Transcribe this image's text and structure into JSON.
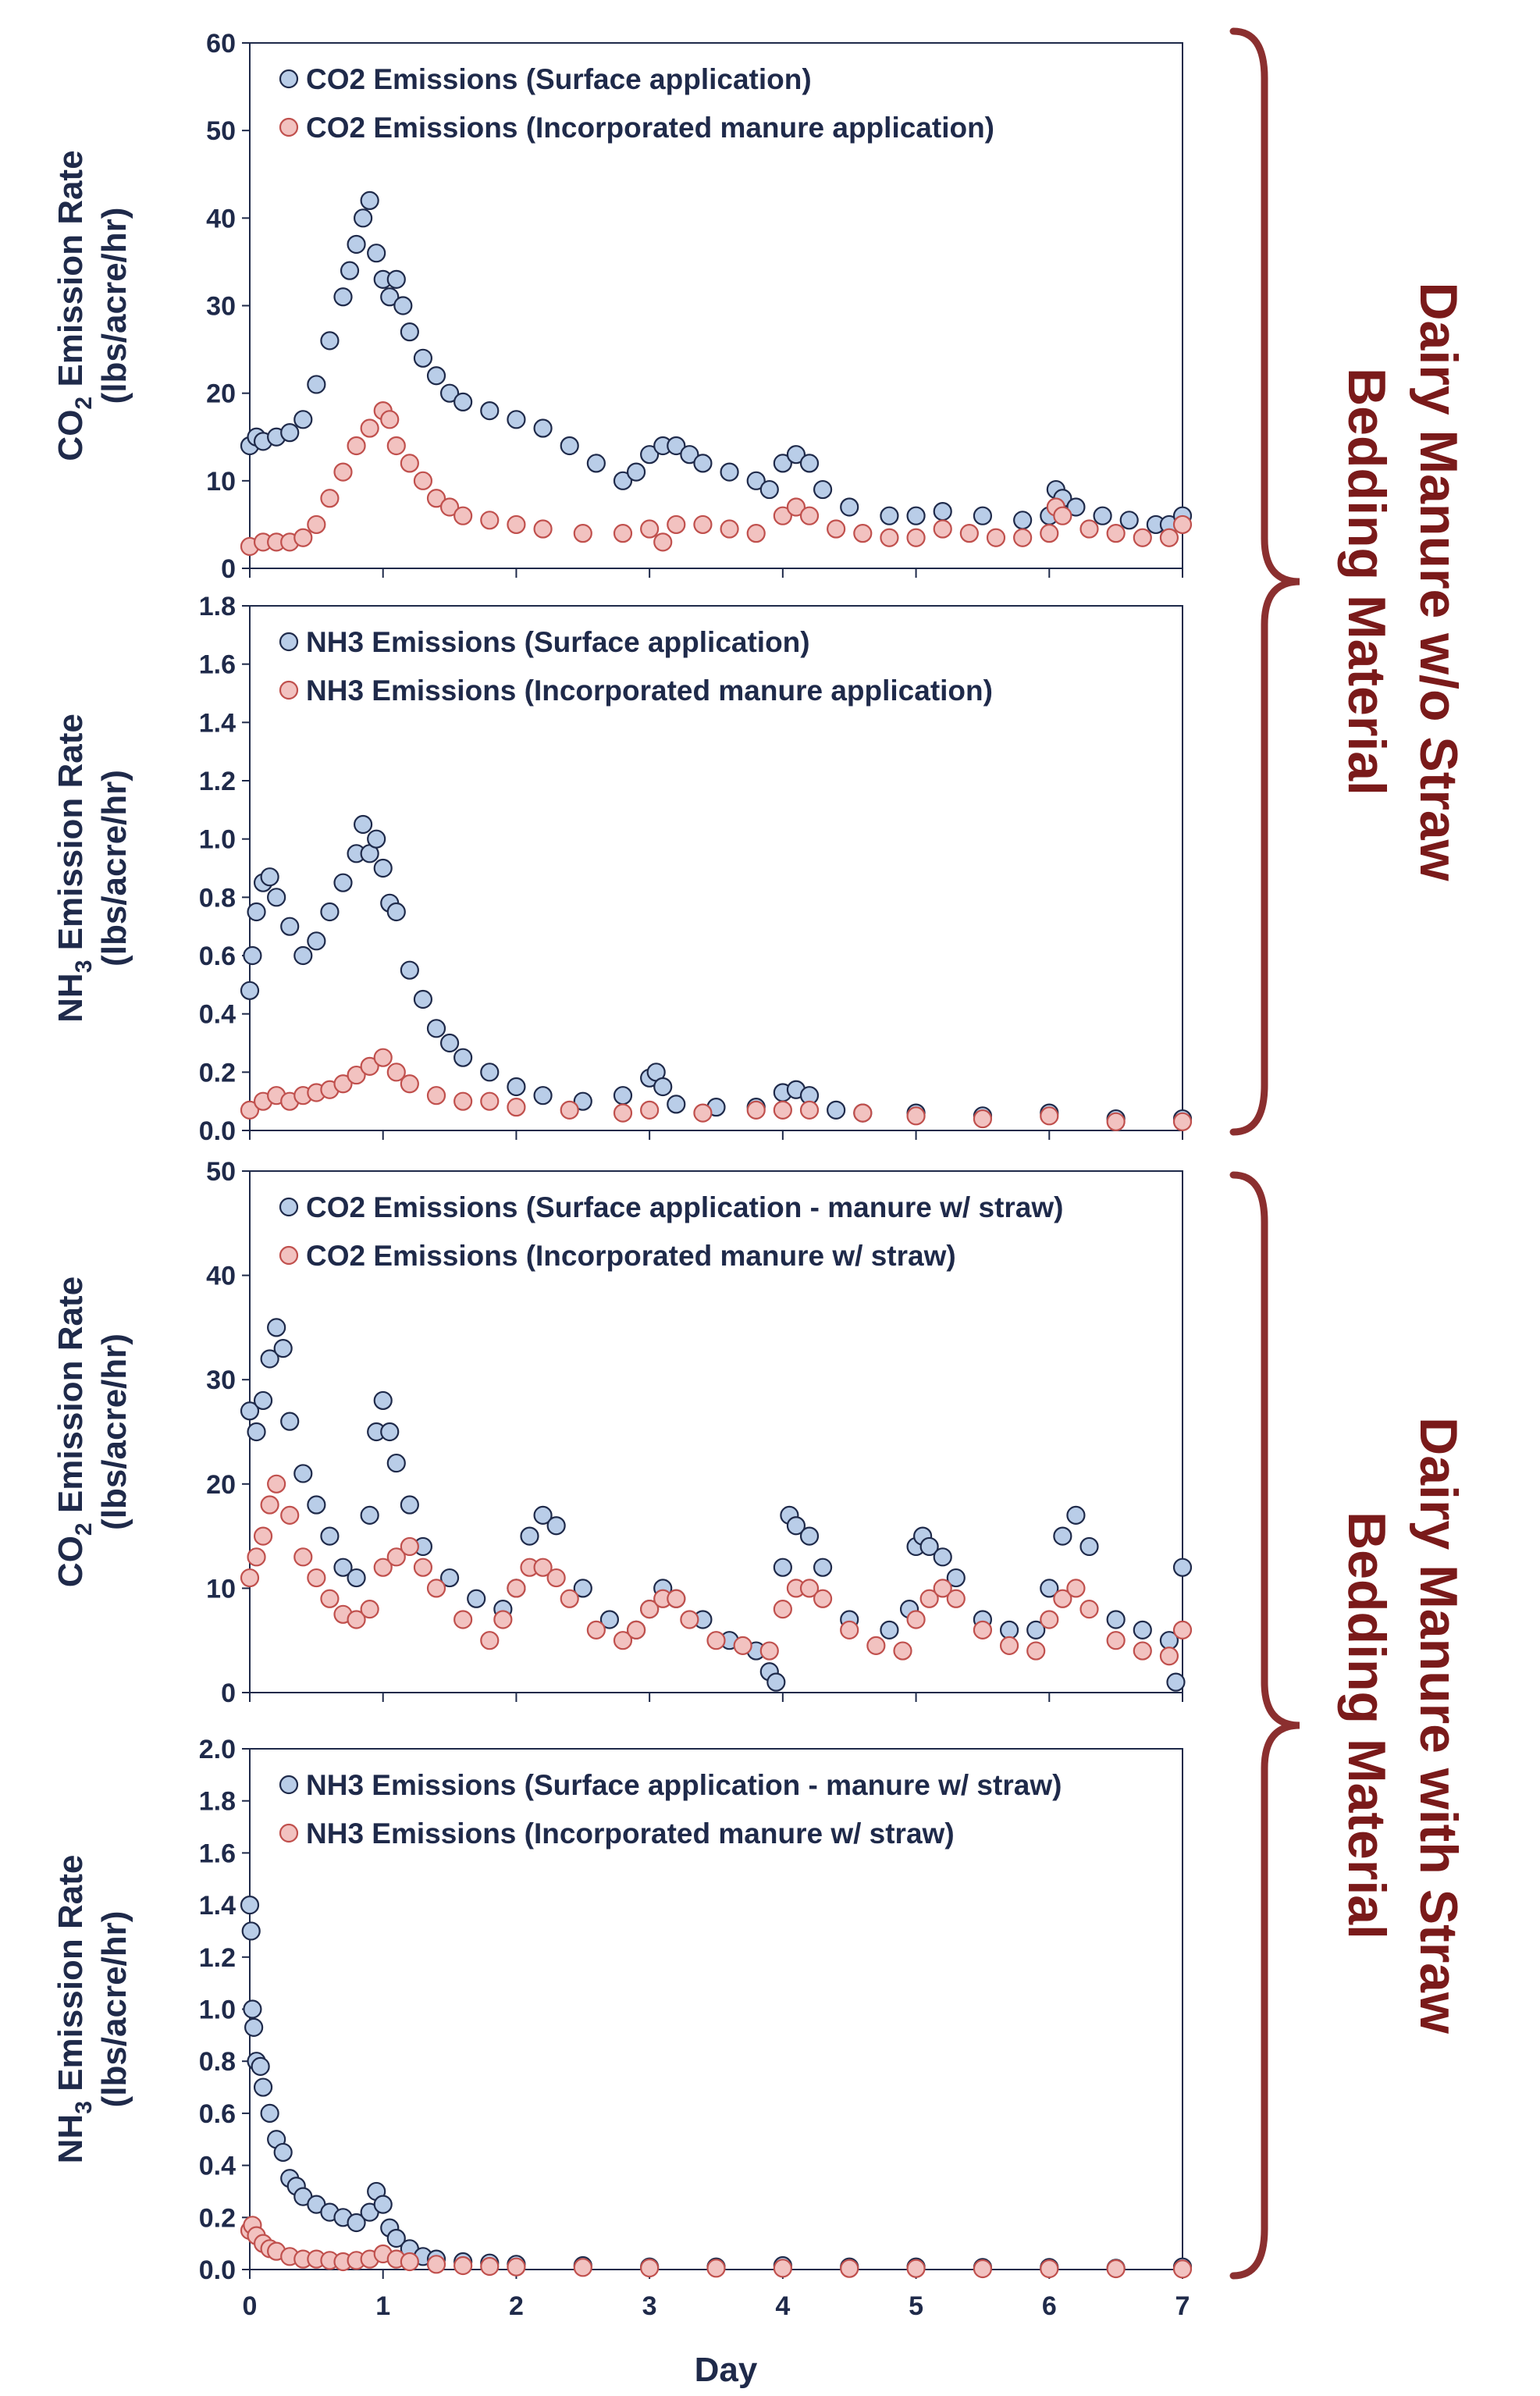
{
  "x_axis": {
    "label": "Day",
    "ticks": [
      "0",
      "1",
      "2",
      "3",
      "4",
      "5",
      "6",
      "7"
    ],
    "range": [
      0,
      7
    ]
  },
  "groups": [
    {
      "label": [
        "Dairy Manure w/o Straw",
        "Bedding Material"
      ],
      "bracket_color": "#8b2f2f"
    },
    {
      "label": [
        "Dairy Manure with Straw",
        "Bedding Material"
      ],
      "bracket_color": "#8b2f2f"
    }
  ],
  "colors": {
    "surface_fill": "#b9cde8",
    "surface_edge": "#1f2a4a",
    "incorporated_fill": "#f2c2c0",
    "incorporated_edge": "#c0504d",
    "text": "#1f2a4a",
    "group_text": "#7a1a1a"
  },
  "chart_data": [
    {
      "type": "scatter",
      "ylabel": [
        "CO",
        "2",
        " Emission Rate",
        "(lbs/acre/hr)"
      ],
      "ylim": [
        0,
        60
      ],
      "yticks": [
        0,
        10,
        20,
        30,
        40,
        50,
        60
      ],
      "yticks_text": [
        "0",
        "10",
        "20",
        "30",
        "40",
        "50",
        "60"
      ],
      "series": [
        {
          "name": "CO2 Emissions (Surface application)",
          "style": "surface",
          "x": [
            0,
            0.05,
            0.1,
            0.2,
            0.3,
            0.4,
            0.5,
            0.6,
            0.7,
            0.75,
            0.8,
            0.85,
            0.9,
            0.95,
            1.0,
            1.05,
            1.1,
            1.15,
            1.2,
            1.3,
            1.4,
            1.5,
            1.6,
            1.8,
            2.0,
            2.2,
            2.4,
            2.6,
            2.8,
            2.9,
            3.0,
            3.1,
            3.2,
            3.3,
            3.4,
            3.6,
            3.8,
            3.9,
            4.0,
            4.1,
            4.2,
            4.3,
            4.5,
            4.8,
            5.0,
            5.2,
            5.5,
            5.8,
            6.0,
            6.05,
            6.1,
            6.2,
            6.4,
            6.6,
            6.8,
            6.9,
            7.0
          ],
          "y": [
            14,
            15,
            14.5,
            15,
            15.5,
            17,
            21,
            26,
            31,
            34,
            37,
            40,
            42,
            36,
            33,
            31,
            33,
            30,
            27,
            24,
            22,
            20,
            19,
            18,
            17,
            16,
            14,
            12,
            10,
            11,
            13,
            14,
            14,
            13,
            12,
            11,
            10,
            9,
            12,
            13,
            12,
            9,
            7,
            6,
            6,
            6.5,
            6,
            5.5,
            6,
            9,
            8,
            7,
            6,
            5.5,
            5,
            5,
            6
          ]
        },
        {
          "name": "CO2 Emissions (Incorporated manure application)",
          "style": "incorporated",
          "x": [
            0,
            0.1,
            0.2,
            0.3,
            0.4,
            0.5,
            0.6,
            0.7,
            0.8,
            0.9,
            1.0,
            1.05,
            1.1,
            1.2,
            1.3,
            1.4,
            1.5,
            1.6,
            1.8,
            2.0,
            2.2,
            2.5,
            2.8,
            3.0,
            3.1,
            3.2,
            3.4,
            3.6,
            3.8,
            4.0,
            4.1,
            4.2,
            4.4,
            4.6,
            4.8,
            5.0,
            5.2,
            5.4,
            5.6,
            5.8,
            6.0,
            6.05,
            6.1,
            6.3,
            6.5,
            6.7,
            6.9,
            7.0
          ],
          "y": [
            2.5,
            3,
            3,
            3,
            3.5,
            5,
            8,
            11,
            14,
            16,
            18,
            17,
            14,
            12,
            10,
            8,
            7,
            6,
            5.5,
            5,
            4.5,
            4,
            4,
            4.5,
            3,
            5,
            5,
            4.5,
            4,
            6,
            7,
            6,
            4.5,
            4,
            3.5,
            3.5,
            4.5,
            4,
            3.5,
            3.5,
            4,
            7,
            6,
            4.5,
            4,
            3.5,
            3.5,
            5
          ]
        }
      ]
    },
    {
      "type": "scatter",
      "ylabel": [
        "NH",
        "3",
        " Emission Rate",
        "(lbs/acre/hr)"
      ],
      "ylim": [
        0,
        1.8
      ],
      "yticks": [
        0,
        0.2,
        0.4,
        0.6,
        0.8,
        1.0,
        1.2,
        1.4,
        1.6,
        1.8
      ],
      "yticks_text": [
        "0.0",
        "0.2",
        "0.4",
        "0.6",
        "0.8",
        "1.0",
        "1.2",
        "1.4",
        "1.6",
        "1.8"
      ],
      "series": [
        {
          "name": "NH3 Emissions (Surface application)",
          "style": "surface",
          "x": [
            0,
            0.02,
            0.05,
            0.1,
            0.15,
            0.2,
            0.3,
            0.4,
            0.5,
            0.6,
            0.7,
            0.8,
            0.85,
            0.9,
            0.95,
            1.0,
            1.05,
            1.1,
            1.2,
            1.3,
            1.4,
            1.5,
            1.6,
            1.8,
            2.0,
            2.2,
            2.5,
            2.8,
            3.0,
            3.05,
            3.1,
            3.2,
            3.5,
            3.8,
            4.0,
            4.1,
            4.2,
            4.4,
            4.6,
            5.0,
            5.5,
            6.0,
            6.5,
            7.0
          ],
          "y": [
            0.48,
            0.6,
            0.75,
            0.85,
            0.87,
            0.8,
            0.7,
            0.6,
            0.65,
            0.75,
            0.85,
            0.95,
            1.05,
            0.95,
            1.0,
            0.9,
            0.78,
            0.75,
            0.55,
            0.45,
            0.35,
            0.3,
            0.25,
            0.2,
            0.15,
            0.12,
            0.1,
            0.12,
            0.18,
            0.2,
            0.15,
            0.09,
            0.08,
            0.08,
            0.13,
            0.14,
            0.12,
            0.07,
            0.06,
            0.06,
            0.05,
            0.06,
            0.04,
            0.04
          ]
        },
        {
          "name": "NH3 Emissions (Incorporated manure application)",
          "style": "incorporated",
          "x": [
            0,
            0.1,
            0.2,
            0.3,
            0.4,
            0.5,
            0.6,
            0.7,
            0.8,
            0.9,
            1.0,
            1.1,
            1.2,
            1.4,
            1.6,
            1.8,
            2.0,
            2.4,
            2.8,
            3.0,
            3.4,
            3.8,
            4.0,
            4.2,
            4.6,
            5.0,
            5.5,
            6.0,
            6.5,
            7.0
          ],
          "y": [
            0.07,
            0.1,
            0.12,
            0.1,
            0.12,
            0.13,
            0.14,
            0.16,
            0.19,
            0.22,
            0.25,
            0.2,
            0.16,
            0.12,
            0.1,
            0.1,
            0.08,
            0.07,
            0.06,
            0.07,
            0.06,
            0.07,
            0.07,
            0.07,
            0.06,
            0.05,
            0.04,
            0.05,
            0.03,
            0.03
          ]
        }
      ]
    },
    {
      "type": "scatter",
      "ylabel": [
        "CO",
        "2",
        " Emission Rate",
        "(lbs/acre/hr)"
      ],
      "ylim": [
        0,
        50
      ],
      "yticks": [
        0,
        10,
        20,
        30,
        40,
        50
      ],
      "yticks_text": [
        "0",
        "10",
        "20",
        "30",
        "40",
        "50"
      ],
      "series": [
        {
          "name": "CO2 Emissions (Surface application - manure w/ straw)",
          "style": "surface",
          "x": [
            0,
            0.05,
            0.1,
            0.15,
            0.2,
            0.25,
            0.3,
            0.4,
            0.5,
            0.6,
            0.7,
            0.8,
            0.9,
            0.95,
            1.0,
            1.05,
            1.1,
            1.2,
            1.3,
            1.5,
            1.7,
            1.9,
            2.0,
            2.1,
            2.2,
            2.3,
            2.5,
            2.7,
            2.9,
            3.0,
            3.1,
            3.2,
            3.4,
            3.6,
            3.8,
            3.9,
            3.95,
            4.0,
            4.05,
            4.1,
            4.2,
            4.3,
            4.5,
            4.8,
            4.95,
            5.0,
            5.05,
            5.1,
            5.2,
            5.3,
            5.5,
            5.7,
            5.9,
            6.0,
            6.1,
            6.2,
            6.3,
            6.5,
            6.7,
            6.9,
            6.95,
            7.0
          ],
          "y": [
            27,
            25,
            28,
            32,
            35,
            33,
            26,
            21,
            18,
            15,
            12,
            11,
            17,
            25,
            28,
            25,
            22,
            18,
            14,
            11,
            9,
            8,
            10,
            15,
            17,
            16,
            10,
            7,
            6,
            8,
            10,
            9,
            7,
            5,
            4,
            2,
            1,
            12,
            17,
            16,
            15,
            12,
            7,
            6,
            8,
            14,
            15,
            14,
            13,
            11,
            7,
            6,
            6,
            10,
            15,
            17,
            14,
            7,
            6,
            5,
            1,
            12
          ]
        },
        {
          "name": "CO2 Emissions (Incorporated manure w/ straw)",
          "style": "incorporated",
          "x": [
            0,
            0.05,
            0.1,
            0.15,
            0.2,
            0.3,
            0.4,
            0.5,
            0.6,
            0.7,
            0.8,
            0.9,
            1.0,
            1.1,
            1.2,
            1.3,
            1.4,
            1.6,
            1.8,
            1.9,
            2.0,
            2.1,
            2.2,
            2.3,
            2.4,
            2.6,
            2.8,
            2.9,
            3.0,
            3.1,
            3.2,
            3.3,
            3.5,
            3.7,
            3.9,
            4.0,
            4.1,
            4.2,
            4.3,
            4.5,
            4.7,
            4.9,
            5.0,
            5.1,
            5.2,
            5.3,
            5.5,
            5.7,
            5.9,
            6.0,
            6.1,
            6.2,
            6.3,
            6.5,
            6.7,
            6.9,
            7.0
          ],
          "y": [
            11,
            13,
            15,
            18,
            20,
            17,
            13,
            11,
            9,
            7.5,
            7,
            8,
            12,
            13,
            14,
            12,
            10,
            7,
            5,
            7,
            10,
            12,
            12,
            11,
            9,
            6,
            5,
            6,
            8,
            9,
            9,
            7,
            5,
            4.5,
            4,
            8,
            10,
            10,
            9,
            6,
            4.5,
            4,
            7,
            9,
            10,
            9,
            6,
            4.5,
            4,
            7,
            9,
            10,
            8,
            5,
            4,
            3.5,
            6
          ]
        }
      ]
    },
    {
      "type": "scatter",
      "ylabel": [
        "NH",
        "3",
        " Emission Rate",
        "(lbs/acre/hr)"
      ],
      "ylim": [
        0,
        2.0
      ],
      "yticks": [
        0,
        0.2,
        0.4,
        0.6,
        0.8,
        1.0,
        1.2,
        1.4,
        1.6,
        1.8,
        2.0
      ],
      "yticks_text": [
        "0.0",
        "0.2",
        "0.4",
        "0.6",
        "0.8",
        "1.0",
        "1.2",
        "1.4",
        "1.6",
        "1.8",
        "2.0"
      ],
      "series": [
        {
          "name": "NH3 Emissions (Surface application - manure w/ straw)",
          "style": "surface",
          "x": [
            0,
            0.01,
            0.02,
            0.03,
            0.05,
            0.08,
            0.1,
            0.15,
            0.2,
            0.25,
            0.3,
            0.35,
            0.4,
            0.5,
            0.6,
            0.7,
            0.8,
            0.9,
            0.95,
            1.0,
            1.05,
            1.1,
            1.2,
            1.3,
            1.4,
            1.6,
            1.8,
            2.0,
            2.5,
            3.0,
            3.5,
            4.0,
            4.5,
            5.0,
            5.5,
            6.0,
            6.5,
            7.0
          ],
          "y": [
            1.4,
            1.3,
            1.0,
            0.93,
            0.8,
            0.78,
            0.7,
            0.6,
            0.5,
            0.45,
            0.35,
            0.32,
            0.28,
            0.25,
            0.22,
            0.2,
            0.18,
            0.22,
            0.3,
            0.25,
            0.16,
            0.12,
            0.08,
            0.05,
            0.04,
            0.03,
            0.025,
            0.02,
            0.015,
            0.01,
            0.01,
            0.015,
            0.01,
            0.01,
            0.008,
            0.008,
            0.005,
            0.01
          ]
        },
        {
          "name": "NH3 Emissions (Incorporated manure w/ straw)",
          "style": "incorporated",
          "x": [
            0,
            0.02,
            0.05,
            0.1,
            0.15,
            0.2,
            0.3,
            0.4,
            0.5,
            0.6,
            0.7,
            0.8,
            0.9,
            1.0,
            1.1,
            1.2,
            1.4,
            1.6,
            1.8,
            2.0,
            2.5,
            3.0,
            3.5,
            4.0,
            4.5,
            5.0,
            5.5,
            6.0,
            6.5,
            7.0
          ],
          "y": [
            0.15,
            0.17,
            0.13,
            0.1,
            0.08,
            0.07,
            0.05,
            0.04,
            0.04,
            0.035,
            0.03,
            0.035,
            0.04,
            0.06,
            0.04,
            0.03,
            0.02,
            0.015,
            0.012,
            0.01,
            0.008,
            0.006,
            0.005,
            0.005,
            0.004,
            0.004,
            0.003,
            0.003,
            0.003,
            0.002
          ]
        }
      ]
    }
  ]
}
